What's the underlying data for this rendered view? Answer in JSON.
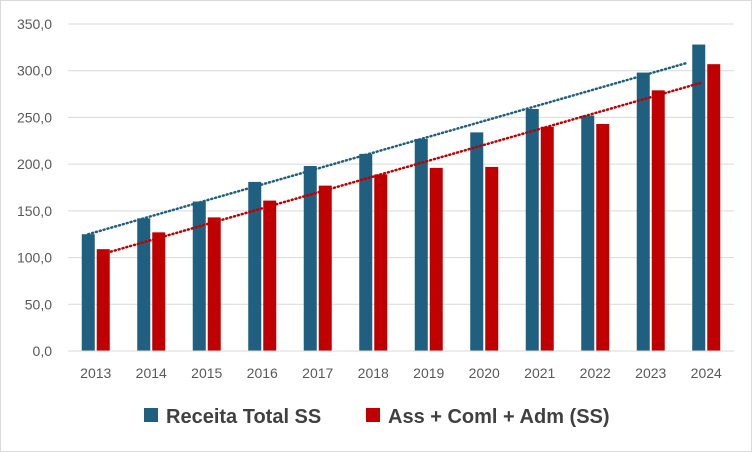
{
  "chart_data": {
    "type": "bar",
    "categories": [
      "2013",
      "2014",
      "2015",
      "2016",
      "2017",
      "2018",
      "2019",
      "2020",
      "2021",
      "2022",
      "2023",
      "2024"
    ],
    "series": [
      {
        "name": "Receita Total SS",
        "color": "#1f5f7f",
        "values": [
          125,
          142,
          160,
          181,
          198,
          211,
          227,
          234,
          259,
          252,
          298,
          328
        ],
        "trendline": {
          "style": "dotted",
          "start": 125,
          "end": 308
        }
      },
      {
        "name": "Ass + Coml + Adm (SS)",
        "color": "#c00000",
        "values": [
          109,
          127,
          143,
          161,
          177,
          189,
          196,
          197,
          240,
          243,
          279,
          307
        ],
        "trendline": {
          "style": "dotted",
          "start": 104,
          "end": 287
        }
      }
    ],
    "yticks": [
      "0,0",
      "50,0",
      "100,0",
      "150,0",
      "200,0",
      "250,0",
      "300,0",
      "350,0"
    ],
    "ylim": [
      0,
      350
    ],
    "grid": true,
    "legend": "bottom"
  }
}
